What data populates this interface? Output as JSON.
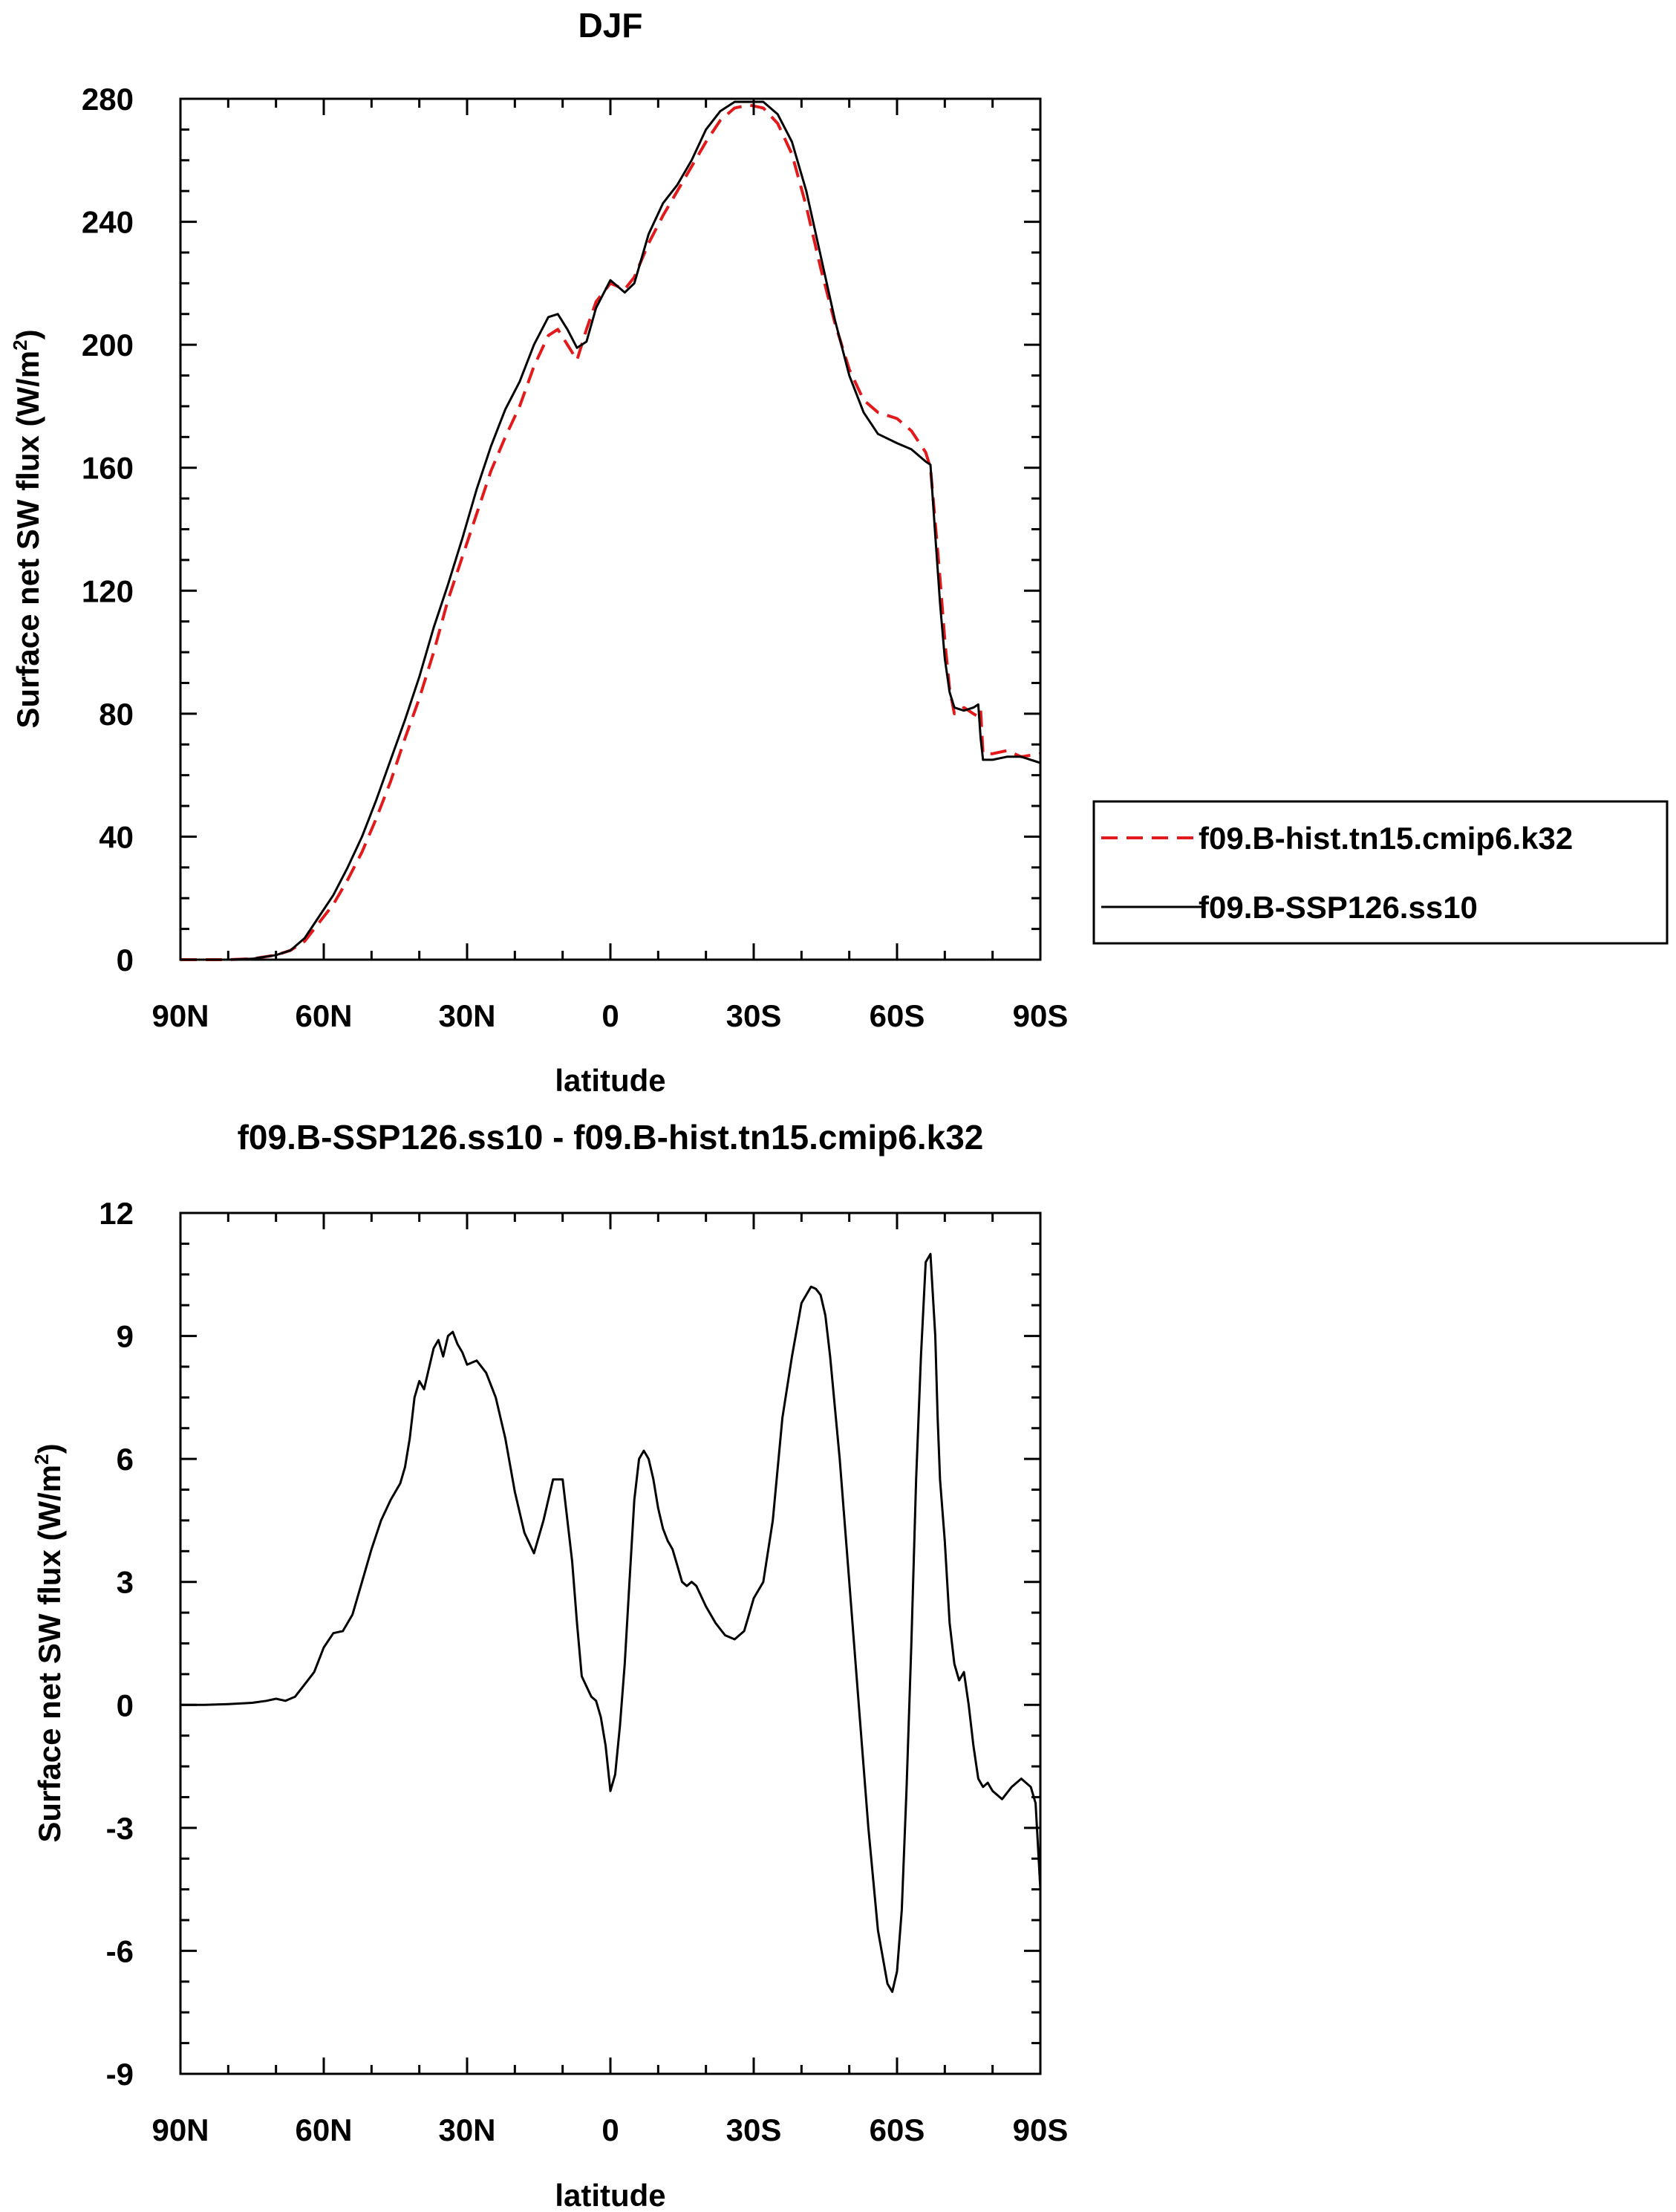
{
  "colors": {
    "hist": "#e31a1c",
    "ssp": "#000000",
    "axis": "#000000"
  },
  "chart_data": [
    {
      "type": "line",
      "title": "DJF",
      "xlabel": "latitude",
      "ylabel_main": "Surface net SW flux (W/m",
      "ylabel_sup": "2",
      "ylabel_end": ")",
      "xlim": [
        90,
        -90
      ],
      "ylim": [
        0,
        280
      ],
      "xticks": [
        90,
        60,
        30,
        0,
        -30,
        -60,
        -90
      ],
      "xtick_labels": [
        "90N",
        "60N",
        "30N",
        "0",
        "30S",
        "60S",
        "90S"
      ],
      "yticks": [
        0,
        40,
        80,
        120,
        160,
        200,
        240,
        280
      ],
      "ytick_labels": [
        "0",
        "40",
        "80",
        "120",
        "160",
        "200",
        "240",
        "280"
      ],
      "legend": [
        "f09.B-hist.tn15.cmip6.k32",
        "f09.B-SSP126.ss10"
      ],
      "legend_position": "right",
      "series": [
        {
          "name": "f09.B-hist.tn15.cmip6.k32",
          "style": "dashed",
          "x": [
            90,
            85,
            80,
            75,
            70,
            67,
            64,
            61,
            58,
            55,
            52,
            49,
            46,
            43,
            40,
            37,
            34,
            31,
            28,
            25,
            22,
            19,
            16,
            13,
            11,
            9,
            7,
            5,
            3,
            0,
            -3,
            -5,
            -8,
            -11,
            -14,
            -17,
            -20,
            -23,
            -26,
            -29,
            -32,
            -35,
            -38,
            -41,
            -44,
            -47,
            -50,
            -53,
            -56,
            -60,
            -63,
            -66,
            -67,
            -68,
            -69,
            -70,
            -71,
            -72,
            -74,
            -76,
            -77,
            -77.5,
            -78,
            -80,
            -83,
            -86,
            -90
          ],
          "y": [
            0,
            0,
            0,
            0.3,
            1.5,
            3,
            6,
            12,
            18,
            26,
            35,
            46,
            58,
            72,
            85,
            100,
            117,
            131,
            145,
            159,
            170,
            180,
            193,
            203,
            205,
            200,
            195,
            205,
            214,
            220,
            218,
            222,
            233,
            242,
            250,
            258,
            266,
            273,
            277,
            278,
            277,
            272,
            262,
            245,
            225,
            207,
            192,
            182,
            178,
            176,
            172,
            165,
            160,
            142,
            124,
            104,
            88,
            80,
            82,
            80,
            79,
            81,
            67,
            67,
            68,
            66,
            67
          ]
        },
        {
          "name": "f09.B-SSP126.ss10",
          "style": "solid",
          "x": [
            90,
            85,
            80,
            75,
            70,
            67,
            64,
            61,
            58,
            55,
            52,
            49,
            46,
            43,
            40,
            37,
            34,
            31,
            28,
            25,
            22,
            19,
            16,
            13,
            11,
            9,
            7,
            5,
            3,
            0,
            -3,
            -5,
            -8,
            -11,
            -14,
            -17,
            -20,
            -23,
            -26,
            -29,
            -32,
            -35,
            -38,
            -41,
            -44,
            -47,
            -50,
            -53,
            -56,
            -60,
            -63,
            -66,
            -67,
            -68,
            -69,
            -70,
            -71,
            -72,
            -74,
            -76,
            -77,
            -77.5,
            -78,
            -80,
            -83,
            -86,
            -90
          ],
          "y": [
            0,
            0,
            0,
            0.3,
            1.5,
            3,
            7,
            14,
            21,
            30,
            40,
            52,
            65,
            78,
            92,
            108,
            122,
            137,
            153,
            167,
            179,
            188,
            200,
            209,
            210,
            205,
            199,
            201,
            212,
            221,
            217,
            220,
            236,
            246,
            252,
            260,
            270,
            276,
            279,
            279,
            279,
            275,
            266,
            250,
            229,
            208,
            190,
            178,
            171,
            168,
            166,
            162,
            161,
            138,
            116,
            98,
            87,
            82,
            81,
            82,
            83,
            72,
            65,
            65,
            66,
            66,
            64
          ]
        }
      ]
    },
    {
      "type": "line",
      "title": "f09.B-SSP126.ss10 - f09.B-hist.tn15.cmip6.k32",
      "xlabel": "latitude",
      "ylabel_main": "Surface net SW flux (W/m",
      "ylabel_sup": "2",
      "ylabel_end": ")",
      "xlim": [
        90,
        -90
      ],
      "ylim": [
        -9,
        12
      ],
      "xticks": [
        90,
        60,
        30,
        0,
        -30,
        -60,
        -90
      ],
      "xtick_labels": [
        "90N",
        "60N",
        "30N",
        "0",
        "30S",
        "60S",
        "90S"
      ],
      "yticks": [
        -9,
        -6,
        -3,
        0,
        3,
        6,
        9,
        12
      ],
      "ytick_labels": [
        "-9",
        "-6",
        "-3",
        "0",
        "3",
        "6",
        "9",
        "12"
      ],
      "series": [
        {
          "name": "f09.B-SSP126.ss10 - f09.B-hist.tn15.cmip6.k32",
          "style": "solid",
          "x": [
            90,
            85,
            80,
            75,
            72,
            70,
            68,
            66,
            64,
            62,
            60,
            58,
            56,
            54,
            52,
            50,
            48,
            46,
            44,
            43,
            42,
            41,
            40,
            39,
            38,
            37,
            36,
            35,
            34,
            33,
            32,
            31,
            30,
            28,
            26,
            24,
            22,
            20,
            18,
            16,
            14,
            12,
            10,
            8,
            7,
            6,
            4,
            3,
            2,
            1,
            0,
            -1,
            -2,
            -3,
            -4,
            -5,
            -6,
            -7,
            -8,
            -9,
            -10,
            -11,
            -12,
            -13,
            -14,
            -15,
            -16,
            -17,
            -18,
            -20,
            -22,
            -24,
            -26,
            -28,
            -29,
            -30,
            -32,
            -34,
            -36,
            -38,
            -40,
            -42,
            -43,
            -44,
            -45,
            -46,
            -48,
            -50,
            -52,
            -54,
            -56,
            -58,
            -59,
            -60,
            -61,
            -62,
            -63,
            -64,
            -65,
            -66,
            -67,
            -68,
            -68.5,
            -69,
            -70,
            -71,
            -72,
            -73,
            -74,
            -75,
            -76,
            -77,
            -78,
            -79,
            -80,
            -82,
            -84,
            -86,
            -88,
            -89,
            -90
          ],
          "y": [
            0,
            0,
            0.02,
            0.05,
            0.1,
            0.15,
            0.1,
            0.2,
            0.5,
            0.8,
            1.4,
            1.75,
            1.8,
            2.2,
            3.0,
            3.8,
            4.5,
            5.0,
            5.4,
            5.8,
            6.5,
            7.5,
            7.9,
            7.7,
            8.2,
            8.7,
            8.9,
            8.5,
            9.0,
            9.1,
            8.8,
            8.6,
            8.3,
            8.4,
            8.1,
            7.5,
            6.5,
            5.2,
            4.2,
            3.7,
            4.5,
            5.5,
            5.5,
            3.5,
            2.0,
            0.7,
            0.2,
            0.1,
            -0.3,
            -1.0,
            -2.1,
            -1.7,
            -0.5,
            1.0,
            3.0,
            5.0,
            6.0,
            6.2,
            6.0,
            5.5,
            4.8,
            4.3,
            4.0,
            3.8,
            3.4,
            3.0,
            2.9,
            3.0,
            2.9,
            2.4,
            2.0,
            1.7,
            1.6,
            1.8,
            2.2,
            2.6,
            3.0,
            4.5,
            7.0,
            8.5,
            9.8,
            10.2,
            10.15,
            10.0,
            9.5,
            8.5,
            6.0,
            3.0,
            0,
            -3.0,
            -5.5,
            -6.8,
            -7.0,
            -6.5,
            -5.0,
            -2.0,
            1.5,
            5.5,
            8.5,
            10.8,
            11.0,
            9.0,
            7.0,
            5.5,
            4.0,
            2.0,
            1.0,
            0.6,
            0.8,
            0,
            -1.0,
            -1.8,
            -2.0,
            -1.9,
            -2.1,
            -2.3,
            -2.0,
            -1.8,
            -2.0,
            -2.4,
            -4.5
          ]
        }
      ]
    }
  ]
}
